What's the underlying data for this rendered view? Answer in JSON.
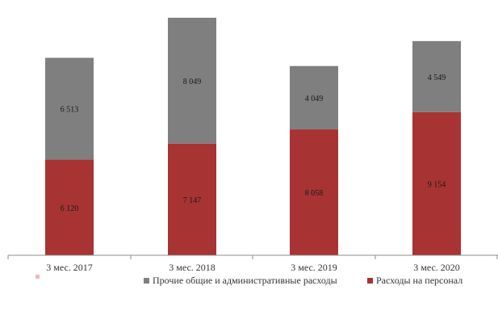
{
  "chart_data": {
    "type": "bar",
    "stacked": true,
    "categories": [
      "3 мес. 2017",
      "3 мес. 2018",
      "3 мес. 2019",
      "3 мес. 2020"
    ],
    "series": [
      {
        "name": "Расходы на персонал",
        "color": "#a83333",
        "values": [
          6120,
          7147,
          8058,
          9154
        ],
        "labels": [
          "6 120",
          "7 147",
          "8 058",
          "9 154"
        ]
      },
      {
        "name": "Прочие общие и административные расходы",
        "color": "#7f7f7f",
        "values": [
          6513,
          8049,
          4049,
          4549
        ],
        "labels": [
          "6 513",
          "8 049",
          "4 049",
          "4 549"
        ]
      }
    ],
    "legend_position": "bottom",
    "grid": false
  }
}
